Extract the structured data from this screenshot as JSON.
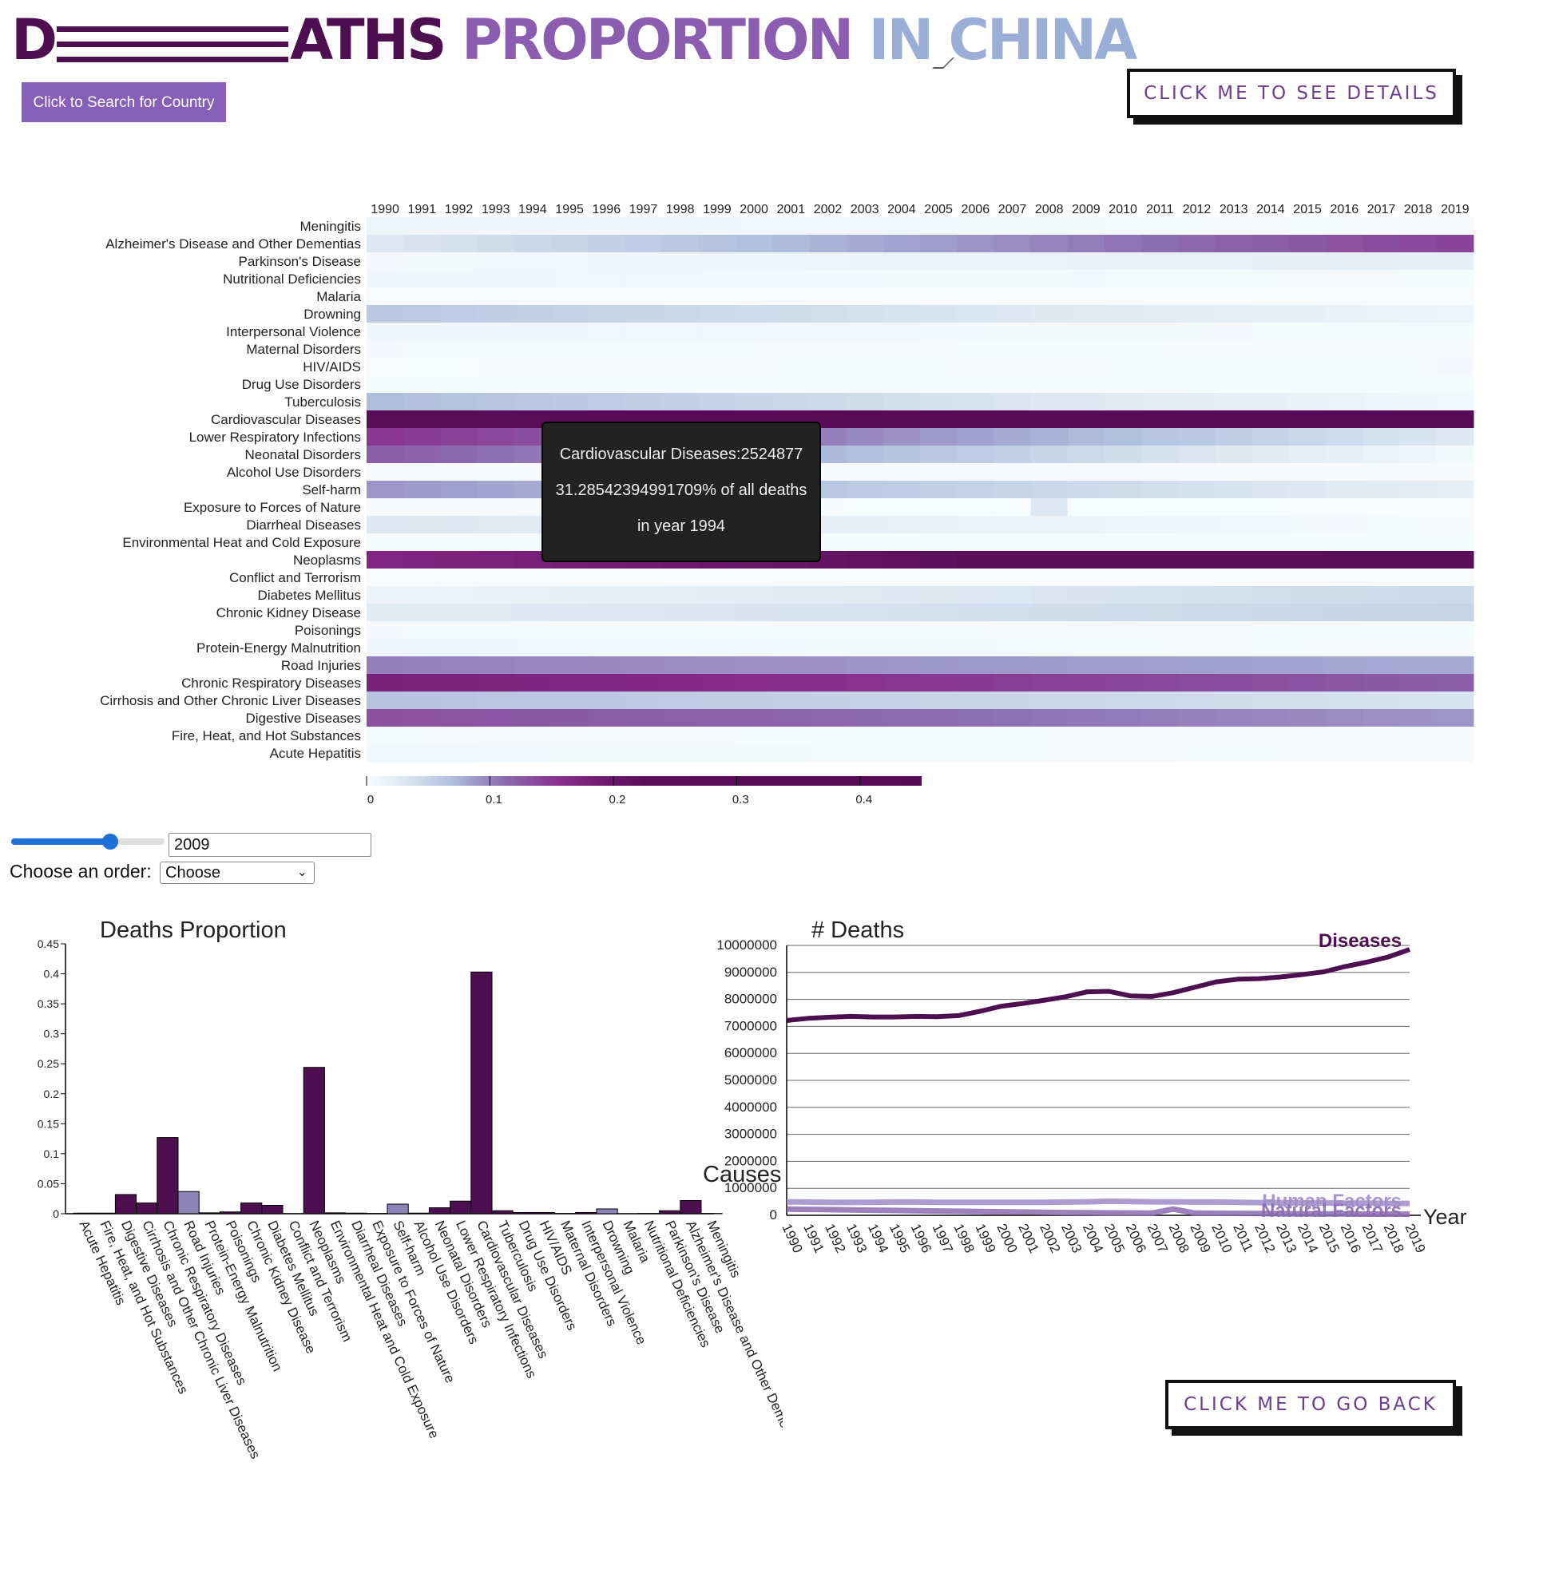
{
  "page": {
    "title_d": "D",
    "title_rest": "ATHS",
    "title_proportion": "PROPORTION",
    "title_in_china": "IN CHINA",
    "search_button": "Click to Search for Country",
    "details_button": "CLICK ME TO SEE DETAILS",
    "back_button": "CLICK ME TO GO BACK",
    "year_value": "2009",
    "order_label": "Choose an order:",
    "order_selected": "Choose"
  },
  "colors": {
    "dark": "#4d0f4f",
    "mid": "#8c6bb1",
    "light": "#f7fbfd",
    "accent": "#8660b8"
  },
  "tooltip": {
    "line1": "Cardiovascular Diseases:2524877",
    "line2": "31.28542394991709% of all deaths",
    "line3": "in year 1994"
  },
  "chart_data": [
    {
      "type": "heatmap",
      "title": "",
      "x": [
        "1990",
        "1991",
        "1992",
        "1993",
        "1994",
        "1995",
        "1996",
        "1997",
        "1998",
        "1999",
        "2000",
        "2001",
        "2002",
        "2003",
        "2004",
        "2005",
        "2006",
        "2007",
        "2008",
        "2009",
        "2010",
        "2011",
        "2012",
        "2013",
        "2014",
        "2015",
        "2016",
        "2017",
        "2018",
        "2019"
      ],
      "rows": [
        {
          "name": "Meningitis",
          "start": 0.01,
          "end": 0.001
        },
        {
          "name": "Alzheimer's Disease and Other Dementias",
          "start": 0.03,
          "end": 0.14
        },
        {
          "name": "Parkinson's Disease",
          "start": 0.004,
          "end": 0.02
        },
        {
          "name": "Nutritional Deficiencies",
          "start": 0.008,
          "end": 0.002
        },
        {
          "name": "Malaria",
          "start": 0.0005,
          "end": 0.0001
        },
        {
          "name": "Drowning",
          "start": 0.06,
          "end": 0.01
        },
        {
          "name": "Interpersonal Violence",
          "start": 0.008,
          "end": 0.003
        },
        {
          "name": "Maternal Disorders",
          "start": 0.004,
          "end": 0.001
        },
        {
          "name": "HIV/AIDS",
          "start": 0.0005,
          "end": 0.004
        },
        {
          "name": "Drug Use Disorders",
          "start": 0.002,
          "end": 0.002
        },
        {
          "name": "Tuberculosis",
          "start": 0.07,
          "end": 0.006
        },
        {
          "name": "Cardiovascular Diseases",
          "start": 0.29,
          "end": 0.43
        },
        {
          "name": "Lower Respiratory Infections",
          "start": 0.15,
          "end": 0.03
        },
        {
          "name": "Neonatal Disorders",
          "start": 0.12,
          "end": 0.005
        },
        {
          "name": "Alcohol Use Disorders",
          "start": 0.001,
          "end": 0.001
        },
        {
          "name": "Self-harm",
          "start": 0.09,
          "end": 0.02
        },
        {
          "name": "Exposure to Forces of Nature",
          "start": 0.001,
          "end": 0.0005
        },
        {
          "name": "Diarrheal Diseases",
          "start": 0.03,
          "end": 0.001
        },
        {
          "name": "Environmental Heat and Cold Exposure",
          "start": 0.002,
          "end": 0.002
        },
        {
          "name": "Neoplasms",
          "start": 0.17,
          "end": 0.26
        },
        {
          "name": "Conflict and Terrorism",
          "start": 0.0002,
          "end": 0.0001
        },
        {
          "name": "Diabetes Mellitus",
          "start": 0.012,
          "end": 0.045
        },
        {
          "name": "Chronic Kidney Disease",
          "start": 0.025,
          "end": 0.05
        },
        {
          "name": "Poisonings",
          "start": 0.004,
          "end": 0.002
        },
        {
          "name": "Protein-Energy Malnutrition",
          "start": 0.008,
          "end": 0.001
        },
        {
          "name": "Road Injuries",
          "start": 0.1,
          "end": 0.08
        },
        {
          "name": "Chronic Respiratory Diseases",
          "start": 0.18,
          "end": 0.12
        },
        {
          "name": "Cirrhosis and Other Chronic Liver Diseases",
          "start": 0.065,
          "end": 0.035
        },
        {
          "name": "Digestive Diseases",
          "start": 0.13,
          "end": 0.09
        },
        {
          "name": "Fire, Heat, and Hot Substances",
          "start": 0.003,
          "end": 0.001
        },
        {
          "name": "Acute Hepatitis",
          "start": 0.006,
          "end": 0.001
        }
      ],
      "anomaly": {
        "row": "Exposure to Forces of Nature",
        "year": "2008",
        "value": 0.03
      },
      "legend": {
        "ticks": [
          "0",
          "0.1",
          "0.2",
          "0.3",
          "0.4"
        ],
        "max": 0.45
      }
    },
    {
      "type": "bar",
      "title": "Deaths Proportion",
      "year": "2009",
      "categories": [
        "Acute Hepatitis",
        "Fire, Heat, and Hot Substances",
        "Digestive Diseases",
        "Cirrhosis and Other Chronic Liver Diseases",
        "Chronic Respiratory Diseases",
        "Road Injuries",
        "Protein-Energy Malnutrition",
        "Poisonings",
        "Chronic Kidney Disease",
        "Diabetes Mellitus",
        "Conflict and Terrorism",
        "Neoplasms",
        "Environmental Heat and Cold Exposure",
        "Diarrheal Diseases",
        "Exposure to Forces of Nature",
        "Self-harm",
        "Alcohol Use Disorders",
        "Neonatal Disorders",
        "Lower Respiratory Infections",
        "Cardiovascular Diseases",
        "Tuberculosis",
        "Drug Use Disorders",
        "HIV/AIDS",
        "Maternal Disorders",
        "Interpersonal Violence",
        "Drowning",
        "Malaria",
        "Nutritional Deficiencies",
        "Parkinson's Disease",
        "Alzheimer's Disease and Other Dementias",
        "Meningitis"
      ],
      "values": [
        0.001,
        0.001,
        0.032,
        0.018,
        0.127,
        0.037,
        0.0015,
        0.003,
        0.018,
        0.014,
        0.0002,
        0.244,
        0.0015,
        0.001,
        0.0005,
        0.016,
        0.001,
        0.01,
        0.021,
        0.403,
        0.005,
        0.002,
        0.002,
        0.0005,
        0.002,
        0.008,
        0.0001,
        0.0005,
        0.005,
        0.022,
        0.0005
      ],
      "groups": [
        "dark",
        "dark",
        "dark",
        "dark",
        "dark",
        "light",
        "dark",
        "dark",
        "dark",
        "dark",
        "dark",
        "dark",
        "dark",
        "dark",
        "light",
        "light",
        "dark",
        "dark",
        "dark",
        "dark",
        "dark",
        "dark",
        "dark",
        "dark",
        "dark",
        "light",
        "light",
        "light",
        "dark",
        "dark",
        "dark"
      ],
      "ylim": [
        0,
        0.45
      ],
      "yticks": [
        "0",
        "0.05",
        "0.1",
        "0.15",
        "0.2",
        "0.25",
        "0.3",
        "0.35",
        "0.4",
        "0.45"
      ]
    },
    {
      "type": "line",
      "title": "# Deaths",
      "xlabel": "Year",
      "ylabel": "Causes",
      "x": [
        "1990",
        "1991",
        "1992",
        "1993",
        "1994",
        "1995",
        "1996",
        "1997",
        "1998",
        "1999",
        "2000",
        "2001",
        "2002",
        "2003",
        "2004",
        "2005",
        "2006",
        "2007",
        "2008",
        "2009",
        "2010",
        "2011",
        "2012",
        "2013",
        "2014",
        "2015",
        "2016",
        "2017",
        "2018",
        "2019"
      ],
      "ylim": [
        0,
        10000000
      ],
      "yticks": [
        "0",
        "1000000",
        "2000000",
        "3000000",
        "4000000",
        "5000000",
        "6000000",
        "7000000",
        "8000000",
        "9000000",
        "10000000"
      ],
      "series": [
        {
          "name": "Diseases",
          "color": "#4d0f4f",
          "values": [
            7220000,
            7300000,
            7340000,
            7370000,
            7350000,
            7350000,
            7370000,
            7360000,
            7400000,
            7560000,
            7750000,
            7850000,
            7970000,
            8100000,
            8280000,
            8300000,
            8130000,
            8110000,
            8250000,
            8450000,
            8650000,
            8750000,
            8770000,
            8830000,
            8920000,
            9020000,
            9220000,
            9380000,
            9570000,
            9850000
          ]
        },
        {
          "name": "Human Factors",
          "color": "#9d8cc8",
          "values": [
            500000,
            490000,
            480000,
            480000,
            480000,
            490000,
            490000,
            480000,
            480000,
            480000,
            480000,
            480000,
            480000,
            490000,
            500000,
            520000,
            510000,
            500000,
            500000,
            490000,
            490000,
            480000,
            470000,
            470000,
            460000,
            460000,
            450000,
            450000,
            440000,
            440000
          ]
        },
        {
          "name": "Natural Factors",
          "color": "#8c6bb1",
          "values": [
            230000,
            220000,
            210000,
            200000,
            190000,
            180000,
            170000,
            160000,
            150000,
            140000,
            130000,
            120000,
            110000,
            100000,
            95000,
            90000,
            85000,
            80000,
            230000,
            80000,
            75000,
            70000,
            65000,
            60000,
            55000,
            50000,
            50000,
            45000,
            45000,
            40000
          ]
        }
      ]
    }
  ]
}
